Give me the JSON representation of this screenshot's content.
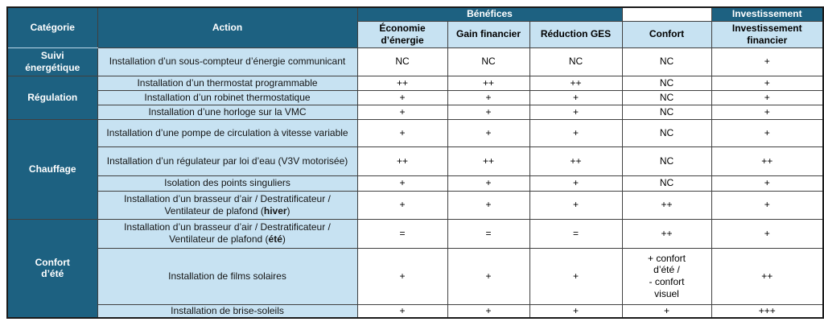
{
  "colors": {
    "header_dark": "#1d6181",
    "cell_light_blue": "#c7e2f2",
    "grid_line": "#404040",
    "header_text": "#ffffff",
    "body_text": "#000000"
  },
  "table": {
    "header": {
      "category": "Catégorie",
      "action": "Action",
      "benefits_group": "Bénéfices",
      "investment_group": "Investissement",
      "columns": [
        "Économie d’énergie",
        "Gain financier",
        "Réduction GES",
        "Confort",
        "Investissement financier"
      ]
    },
    "groups": [
      {
        "category": "Suivi\nénergétique",
        "rows": [
          {
            "action": "Installation d’un sous-compteur d’énergie communicant",
            "values": [
              "NC",
              "NC",
              "NC",
              "NC",
              "+"
            ]
          }
        ]
      },
      {
        "category": "Régulation",
        "rows": [
          {
            "action": "Installation d’un thermostat programmable",
            "values": [
              "++",
              "++",
              "++",
              "NC",
              "+"
            ]
          },
          {
            "action": "Installation d’un robinet thermostatique",
            "values": [
              "+",
              "+",
              "+",
              "NC",
              "+"
            ]
          },
          {
            "action": "Installation d’une horloge sur la VMC",
            "values": [
              "+",
              "+",
              "+",
              "NC",
              "+"
            ]
          }
        ]
      },
      {
        "category": "Chauffage",
        "rows": [
          {
            "action": "Installation d’une pompe de circulation à vitesse variable",
            "values": [
              "+",
              "+",
              "+",
              "NC",
              "+"
            ]
          },
          {
            "action": "Installation d’un régulateur par loi d’eau (V3V motorisée)",
            "values": [
              "++",
              "++",
              "++",
              "NC",
              "++"
            ]
          },
          {
            "action": "Isolation des points singuliers",
            "values": [
              "+",
              "+",
              "+",
              "NC",
              "+"
            ]
          },
          {
            "action": "Installation d’un brasseur d’air / Destratificateur / Ventilateur de plafond (**hiver**)",
            "values": [
              "+",
              "+",
              "+",
              "++",
              "+"
            ]
          }
        ]
      },
      {
        "category": "Confort\nd’été",
        "rows": [
          {
            "action": "Installation d’un brasseur d’air / Destratificateur / Ventilateur de plafond (**été**)",
            "values": [
              "=",
              "=",
              "=",
              "++",
              "+"
            ]
          },
          {
            "action": "Installation de films solaires",
            "values": [
              "+",
              "+",
              "+",
              "+ confort\nd’été /\n- confort\nvisuel",
              "++"
            ]
          },
          {
            "action": "Installation de brise-soleils",
            "values": [
              "+",
              "+",
              "+",
              "+",
              "+++"
            ]
          }
        ]
      }
    ]
  }
}
